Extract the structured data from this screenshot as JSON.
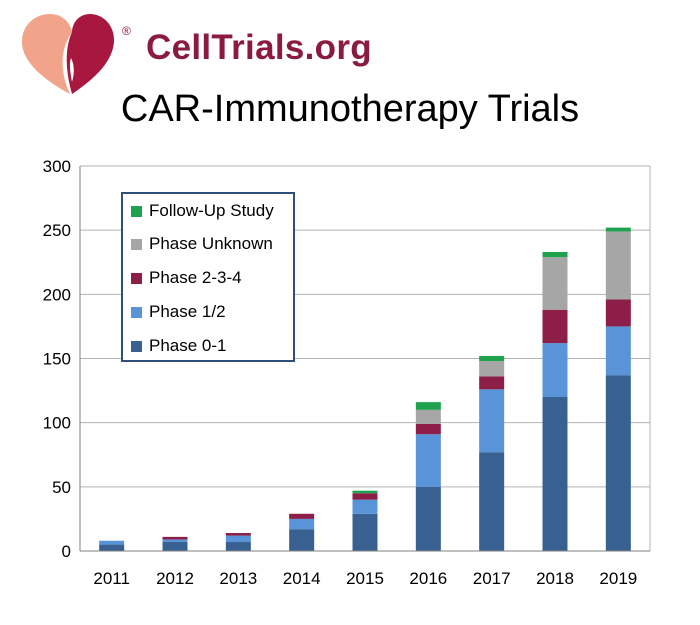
{
  "brand": {
    "name": "CellTrials.org",
    "registered": "®"
  },
  "title": "CAR-Immunotherapy Trials",
  "colors": {
    "phase01": "#386192",
    "phase12": "#5a94d8",
    "phase234": "#8c1e47",
    "unknown": "#a6a6a6",
    "followup": "#1fa24d",
    "grid": "#b3b3b3",
    "logo_left": "#f2a48a",
    "logo_right": "#a8173e"
  },
  "chart_data": {
    "type": "bar",
    "stacked": true,
    "title": "CAR-Immunotherapy Trials",
    "categories": [
      "2011",
      "2012",
      "2013",
      "2014",
      "2015",
      "2016",
      "2017",
      "2018",
      "2019"
    ],
    "series": [
      {
        "name": "Phase 0-1",
        "color_key": "phase01",
        "values": [
          5,
          7,
          7,
          17,
          29,
          50,
          77,
          120,
          137
        ]
      },
      {
        "name": "Phase 1/2",
        "color_key": "phase12",
        "values": [
          3,
          2,
          5,
          8,
          11,
          41,
          49,
          42,
          38
        ]
      },
      {
        "name": "Phase 2-3-4",
        "color_key": "phase234",
        "values": [
          0,
          2,
          2,
          4,
          5,
          8,
          10,
          26,
          21
        ]
      },
      {
        "name": "Phase Unknown",
        "color_key": "unknown",
        "values": [
          0,
          0,
          0,
          0,
          0,
          11,
          12,
          41,
          53
        ]
      },
      {
        "name": "Follow-Up Study",
        "color_key": "followup",
        "values": [
          0,
          0,
          0,
          0,
          2,
          6,
          4,
          4,
          3
        ]
      }
    ],
    "ylim": [
      0,
      300
    ],
    "yticks": [
      "0",
      "50",
      "100",
      "150",
      "200",
      "250",
      "300"
    ],
    "grid": true,
    "legend_order": [
      "Follow-Up Study",
      "Phase Unknown",
      "Phase 2-3-4",
      "Phase 1/2",
      "Phase 0-1"
    ],
    "legend_position": "top-left"
  }
}
